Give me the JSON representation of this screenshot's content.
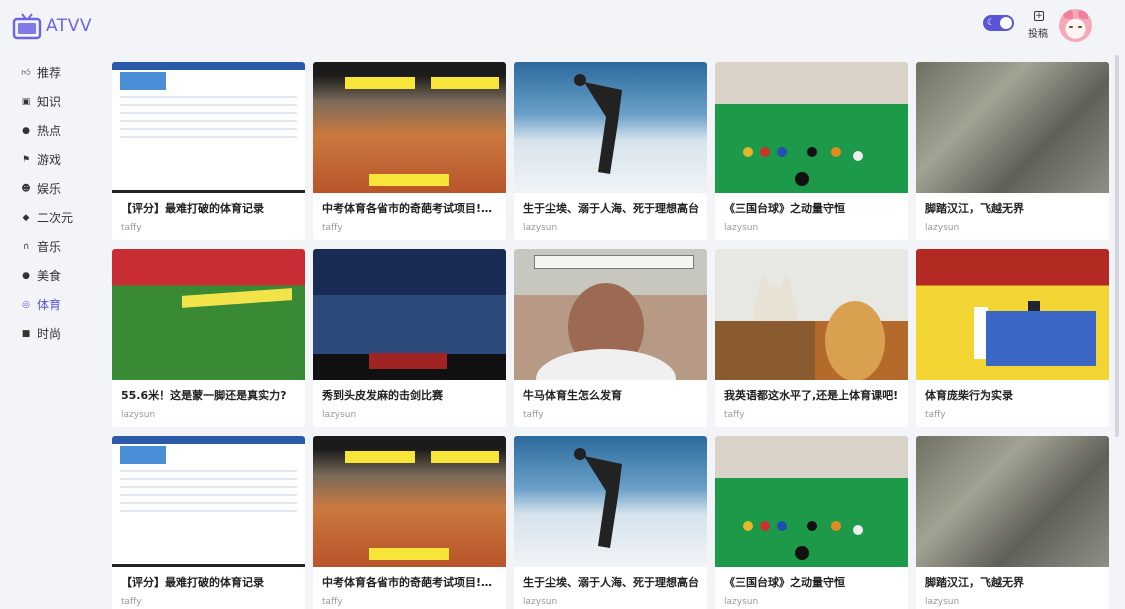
{
  "app": {
    "title": "ATVV",
    "upload_label": "投稿"
  },
  "sidebar": {
    "items": [
      {
        "label": "推荐",
        "icon": "thumbs-up-icon"
      },
      {
        "label": "知识",
        "icon": "book-icon"
      },
      {
        "label": "热点",
        "icon": "fire-icon"
      },
      {
        "label": "游戏",
        "icon": "flag-icon"
      },
      {
        "label": "娱乐",
        "icon": "smile-icon"
      },
      {
        "label": "二次元",
        "icon": "tag-icon"
      },
      {
        "label": "音乐",
        "icon": "headphones-icon"
      },
      {
        "label": "美食",
        "icon": "apple-icon"
      },
      {
        "label": "体育",
        "icon": "target-icon",
        "active": true
      },
      {
        "label": "时尚",
        "icon": "bag-icon"
      }
    ]
  },
  "videos": [
    {
      "title": "【评分】最难打破的体育记录",
      "author": "taffy",
      "thumb": "doc"
    },
    {
      "title": "中考体育各省市的奇葩考试项目!太…",
      "author": "taffy",
      "thumb": "orange"
    },
    {
      "title": "生于尘埃、溺于人海、死于理想高台",
      "author": "lazysun",
      "thumb": "snow"
    },
    {
      "title": "《三国台球》之动量守恒",
      "author": "lazysun",
      "thumb": "pool"
    },
    {
      "title": "脚踏汉江，飞越无界",
      "author": "lazysun",
      "thumb": "rock"
    },
    {
      "title": "55.6米！这是蒙一脚还是真实力?",
      "author": "lazysun",
      "thumb": "field"
    },
    {
      "title": "秀到头皮发麻的击剑比赛",
      "author": "lazysun",
      "thumb": "fence"
    },
    {
      "title": "牛马体育生怎么发育",
      "author": "taffy",
      "thumb": "face"
    },
    {
      "title": "我英语都这水平了,还是上体育课吧!",
      "author": "taffy",
      "thumb": "cats"
    },
    {
      "title": "体育庞柴行为实录",
      "author": "taffy",
      "thumb": "taek"
    },
    {
      "title": "【评分】最难打破的体育记录",
      "author": "taffy",
      "thumb": "doc"
    },
    {
      "title": "中考体育各省市的奇葩考试项目!太…",
      "author": "taffy",
      "thumb": "orange"
    },
    {
      "title": "生于尘埃、溺于人海、死于理想高台",
      "author": "lazysun",
      "thumb": "snow"
    },
    {
      "title": "《三国台球》之动量守恒",
      "author": "lazysun",
      "thumb": "pool"
    },
    {
      "title": "脚踏汉江，飞越无界",
      "author": "lazysun",
      "thumb": "rock"
    }
  ]
}
